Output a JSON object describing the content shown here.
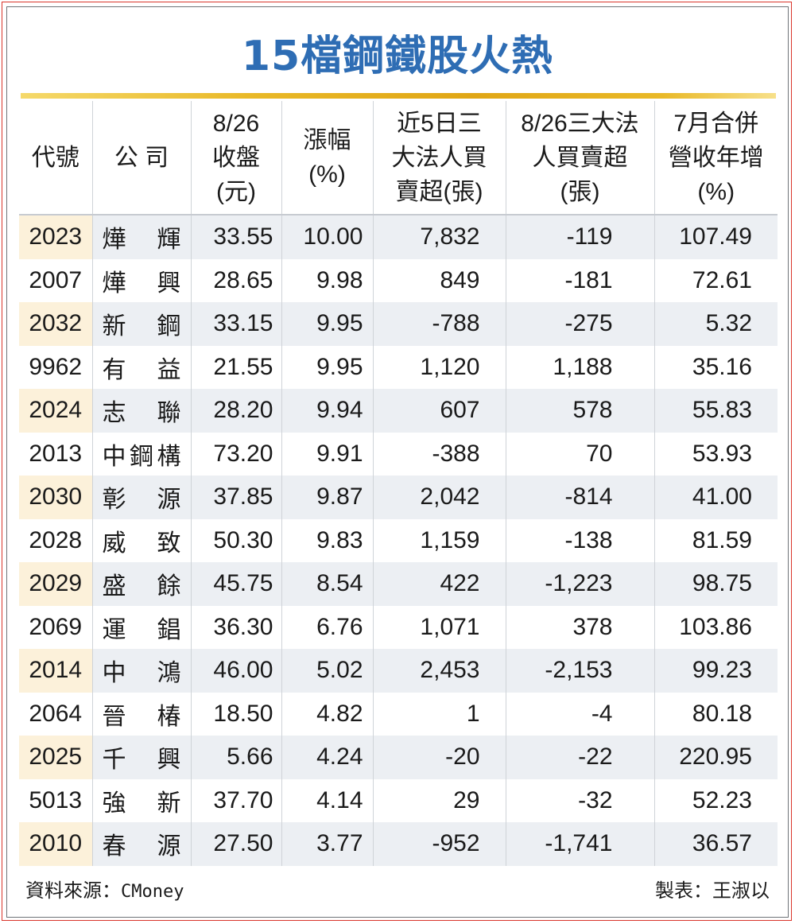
{
  "title": "15檔鋼鐵股火熱",
  "columns": [
    [
      "代號"
    ],
    [
      "公 司"
    ],
    [
      "8/26",
      "收盤",
      "(元)"
    ],
    [
      "漲幅",
      "(%)"
    ],
    [
      "近5日三",
      "大法人買",
      "賣超(張)"
    ],
    [
      "8/26三大法",
      "人買賣超",
      "(張)"
    ],
    [
      "7月合併",
      "營收年增",
      "(%)"
    ]
  ],
  "rows": [
    {
      "code": "2023",
      "name": "燁輝",
      "close": "33.55",
      "change": "10.00",
      "inst_5d": "7,832",
      "inst_826": "-119",
      "rev_yoy": "107.49"
    },
    {
      "code": "2007",
      "name": "燁興",
      "close": "28.65",
      "change": "9.98",
      "inst_5d": "849",
      "inst_826": "-181",
      "rev_yoy": "72.61"
    },
    {
      "code": "2032",
      "name": "新鋼",
      "close": "33.15",
      "change": "9.95",
      "inst_5d": "-788",
      "inst_826": "-275",
      "rev_yoy": "5.32"
    },
    {
      "code": "9962",
      "name": "有益",
      "close": "21.55",
      "change": "9.95",
      "inst_5d": "1,120",
      "inst_826": "1,188",
      "rev_yoy": "35.16"
    },
    {
      "code": "2024",
      "name": "志聯",
      "close": "28.20",
      "change": "9.94",
      "inst_5d": "607",
      "inst_826": "578",
      "rev_yoy": "55.83"
    },
    {
      "code": "2013",
      "name": "中鋼構",
      "close": "73.20",
      "change": "9.91",
      "inst_5d": "-388",
      "inst_826": "70",
      "rev_yoy": "53.93"
    },
    {
      "code": "2030",
      "name": "彰源",
      "close": "37.85",
      "change": "9.87",
      "inst_5d": "2,042",
      "inst_826": "-814",
      "rev_yoy": "41.00"
    },
    {
      "code": "2028",
      "name": "威致",
      "close": "50.30",
      "change": "9.83",
      "inst_5d": "1,159",
      "inst_826": "-138",
      "rev_yoy": "81.59"
    },
    {
      "code": "2029",
      "name": "盛餘",
      "close": "45.75",
      "change": "8.54",
      "inst_5d": "422",
      "inst_826": "-1,223",
      "rev_yoy": "98.75"
    },
    {
      "code": "2069",
      "name": "運錩",
      "close": "36.30",
      "change": "6.76",
      "inst_5d": "1,071",
      "inst_826": "378",
      "rev_yoy": "103.86"
    },
    {
      "code": "2014",
      "name": "中鴻",
      "close": "46.00",
      "change": "5.02",
      "inst_5d": "2,453",
      "inst_826": "-2,153",
      "rev_yoy": "99.23"
    },
    {
      "code": "2064",
      "name": "晉椿",
      "close": "18.50",
      "change": "4.82",
      "inst_5d": "1",
      "inst_826": "-4",
      "rev_yoy": "80.18"
    },
    {
      "code": "2025",
      "name": "千興",
      "close": "5.66",
      "change": "4.24",
      "inst_5d": "-20",
      "inst_826": "-22",
      "rev_yoy": "220.95"
    },
    {
      "code": "5013",
      "name": "強新",
      "close": "37.70",
      "change": "4.14",
      "inst_5d": "29",
      "inst_826": "-32",
      "rev_yoy": "52.23"
    },
    {
      "code": "2010",
      "name": "春源",
      "close": "27.50",
      "change": "3.77",
      "inst_5d": "-952",
      "inst_826": "-1,741",
      "rev_yoy": "36.57"
    }
  ],
  "footer": {
    "source_label": "資料來源：",
    "source_name": "CMoney",
    "author": "製表：王淑以"
  },
  "colors": {
    "title": "#2e6db4",
    "rule": "#e0a615",
    "border_outer": "#d9352b",
    "row_band": "#eceff3",
    "code_band": "#fcf1da"
  }
}
